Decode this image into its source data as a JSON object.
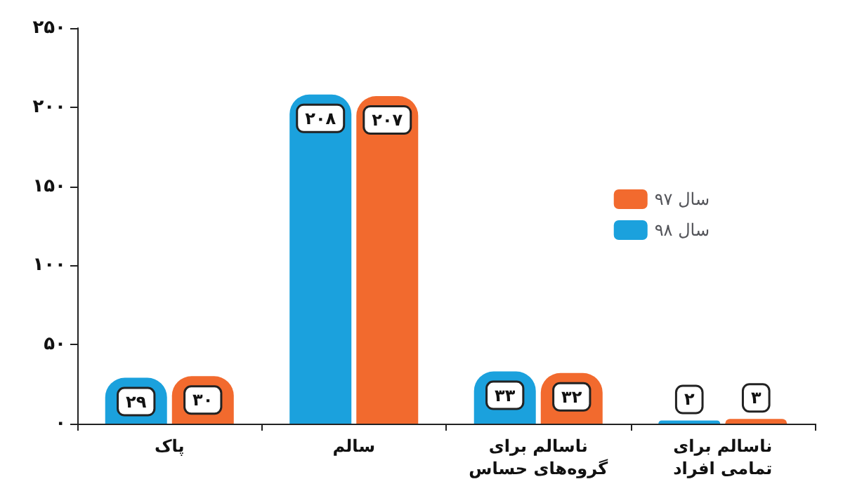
{
  "chart_data": {
    "type": "bar",
    "categories": [
      "پاک",
      "سالم",
      "ناسالم برای\nگروه‌های حساس",
      "ناسالم برای\nتمامی افراد"
    ],
    "series": [
      {
        "name": "سال ۹۸",
        "color": "#1ba1dd",
        "values": [
          29,
          208,
          33,
          2
        ],
        "value_labels": [
          "۲۹",
          "۲۰۸",
          "۳۳",
          "۲"
        ]
      },
      {
        "name": "سال ۹۷",
        "color": "#f26a2e",
        "values": [
          30,
          207,
          32,
          3
        ],
        "value_labels": [
          "۳۰",
          "۲۰۷",
          "۳۲",
          "۳"
        ]
      }
    ],
    "ylim": [
      0,
      250
    ],
    "yticks": [
      {
        "value": 0,
        "label": "۰"
      },
      {
        "value": 50,
        "label": "۵۰"
      },
      {
        "value": 100,
        "label": "۱۰۰"
      },
      {
        "value": 150,
        "label": "۱۵۰"
      },
      {
        "value": 200,
        "label": "۲۰۰"
      },
      {
        "value": 250,
        "label": "۲۵۰"
      }
    ],
    "grid": false,
    "legend": "top right"
  }
}
